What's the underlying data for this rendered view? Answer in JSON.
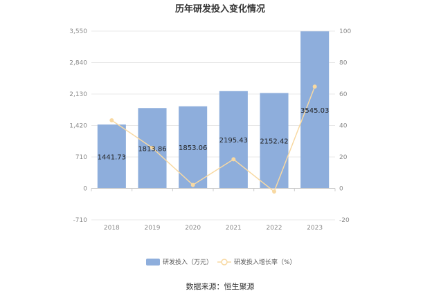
{
  "chart_data": {
    "type": "bar",
    "title": "历年研发投入变化情况",
    "categories": [
      "2018",
      "2019",
      "2020",
      "2021",
      "2022",
      "2023"
    ],
    "series": [
      {
        "name": "研发投入（万元）",
        "type": "bar",
        "axis": "left",
        "values": [
          1441.73,
          1813.86,
          1853.06,
          2195.43,
          2152.42,
          3545.03
        ],
        "labels": [
          "1441.73",
          "1813.86",
          "1853.06",
          "2195.43",
          "2152.42",
          "3545.03"
        ],
        "color": "#8eaedc"
      },
      {
        "name": "研发投入增长率（%）",
        "type": "line",
        "axis": "right",
        "values": [
          43.3,
          25.8,
          2.2,
          18.5,
          -2.0,
          64.7
        ],
        "color": "#f8d9a2"
      }
    ],
    "y_left": {
      "ticks": [
        "3,550",
        "2,840",
        "2,130",
        "1,420",
        "710",
        "0",
        "-710"
      ],
      "range": [
        -710,
        3550
      ]
    },
    "y_right": {
      "ticks": [
        "100",
        "80",
        "60",
        "40",
        "20",
        "0",
        "-20"
      ],
      "range": [
        -20,
        100
      ]
    },
    "grid": true,
    "legend_position": "bottom"
  },
  "source": "数据来源：恒生聚源"
}
